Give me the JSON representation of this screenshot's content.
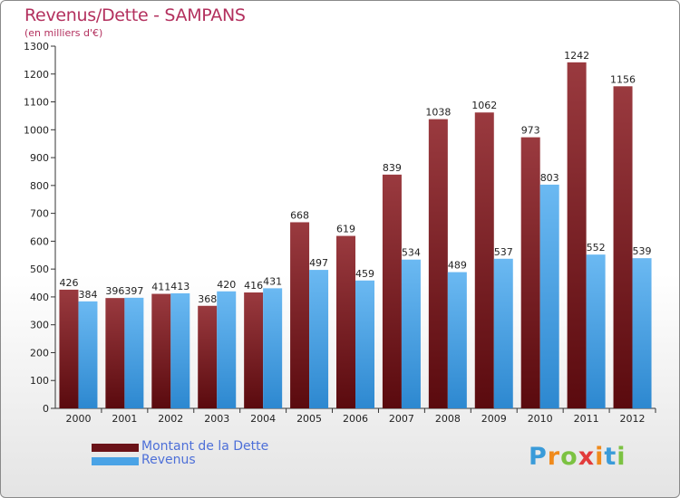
{
  "title": "Revenus/Dette - SAMPANS",
  "subtitle": "(en milliers d'€)",
  "colors": {
    "debt": "#7a1c22",
    "revenue": "#4aa3e6",
    "title": "#b3305e",
    "legend_text": "#4d6fd8"
  },
  "legend": {
    "debt_label": "Montant de la Dette",
    "revenue_label": "Revenus"
  },
  "logo": {
    "text": "Proxiti",
    "letters": [
      "P",
      "r",
      "o",
      "x",
      "i",
      "t",
      "i"
    ],
    "letter_colors": [
      "#3a9bd9",
      "#f08a1c",
      "#7cc242",
      "#e23b3b",
      "#f08a1c",
      "#3a9bd9",
      "#7cc242"
    ]
  },
  "chart_data": {
    "type": "bar",
    "title": "Revenus/Dette - SAMPANS",
    "subtitle": "(en milliers d'€)",
    "xlabel": "",
    "ylabel": "",
    "categories": [
      "2000",
      "2001",
      "2002",
      "2003",
      "2004",
      "2005",
      "2006",
      "2007",
      "2008",
      "2009",
      "2010",
      "2011",
      "2012"
    ],
    "series": [
      {
        "name": "Montant de la Dette",
        "values": [
          426,
          396,
          411,
          368,
          416,
          668,
          619,
          839,
          1038,
          1062,
          973,
          1242,
          1156
        ]
      },
      {
        "name": "Revenus",
        "values": [
          384,
          397,
          413,
          420,
          431,
          497,
          459,
          534,
          489,
          537,
          803,
          552,
          539
        ]
      }
    ],
    "ylim": [
      0,
      1300
    ],
    "yticks": [
      0,
      100,
      200,
      300,
      400,
      500,
      600,
      700,
      800,
      900,
      1000,
      1100,
      1200,
      1300
    ],
    "grid": false,
    "legend_position": "bottom-left"
  }
}
